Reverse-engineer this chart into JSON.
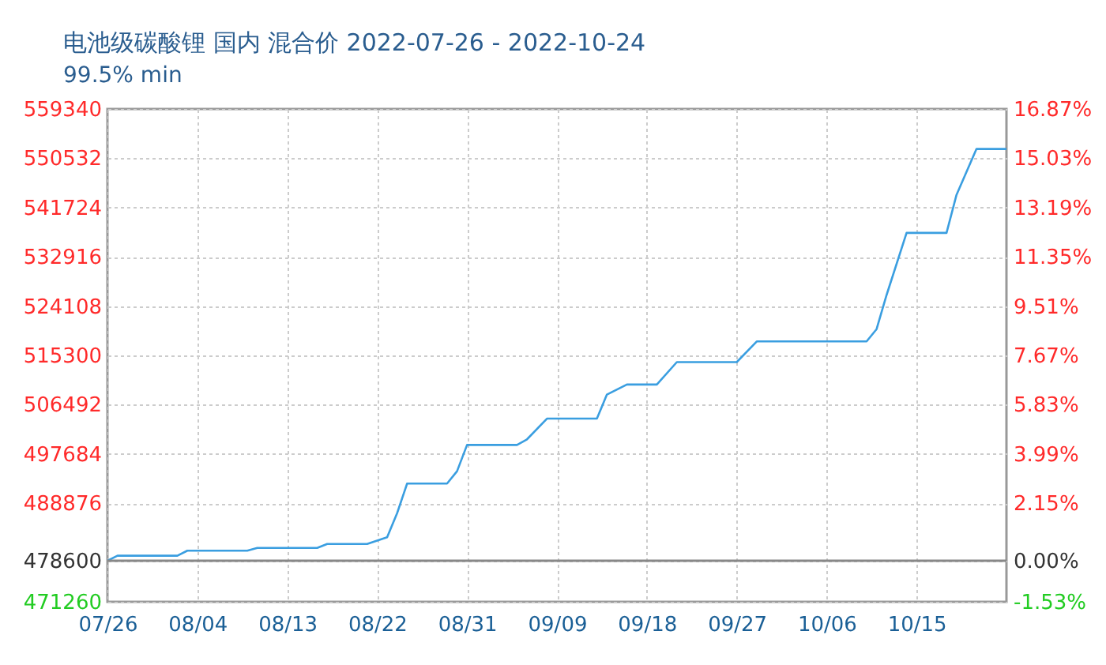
{
  "chart_data": {
    "type": "line",
    "title": "电池级碳酸锂 国内 混合价 2022-07-26 - 2022-10-24",
    "subtitle": "99.5% min",
    "x": [
      "2022-07-26",
      "2022-07-27",
      "2022-08-02",
      "2022-08-03",
      "2022-08-09",
      "2022-08-10",
      "2022-08-16",
      "2022-08-17",
      "2022-08-21",
      "2022-08-23",
      "2022-08-24",
      "2022-08-25",
      "2022-08-29",
      "2022-08-30",
      "2022-08-31",
      "2022-09-05",
      "2022-09-06",
      "2022-09-08",
      "2022-09-13",
      "2022-09-14",
      "2022-09-16",
      "2022-09-19",
      "2022-09-21",
      "2022-09-27",
      "2022-09-29",
      "2022-10-10",
      "2022-10-11",
      "2022-10-12",
      "2022-10-14",
      "2022-10-18",
      "2022-10-19",
      "2022-10-21",
      "2022-10-24"
    ],
    "series": [
      {
        "color": "#3a9ee0",
        "values": [
          478600,
          479500,
          479500,
          480400,
          480400,
          480900,
          480900,
          481600,
          481600,
          482800,
          487100,
          492400,
          492400,
          494600,
          499300,
          499300,
          500300,
          504000,
          504000,
          508300,
          510100,
          510100,
          514100,
          514100,
          517800,
          517800,
          520000,
          526100,
          537200,
          537200,
          544000,
          552200,
          552200
        ]
      }
    ],
    "xlim": [
      "2022-07-26",
      "2022-10-24"
    ],
    "xticks": [
      {
        "value": "2022-07-26",
        "label": "07/26"
      },
      {
        "value": "2022-08-04",
        "label": "08/04"
      },
      {
        "value": "2022-08-13",
        "label": "08/13"
      },
      {
        "value": "2022-08-22",
        "label": "08/22"
      },
      {
        "value": "2022-08-31",
        "label": "08/31"
      },
      {
        "value": "2022-09-09",
        "label": "09/09"
      },
      {
        "value": "2022-09-18",
        "label": "09/18"
      },
      {
        "value": "2022-09-27",
        "label": "09/27"
      },
      {
        "value": "2022-10-06",
        "label": "10/06"
      },
      {
        "value": "2022-10-15",
        "label": "10/15"
      }
    ],
    "ylim": [
      471260,
      559340
    ],
    "yticks": [
      471260,
      478600,
      488876,
      497684,
      506492,
      515300,
      524108,
      532916,
      541724,
      550532,
      559340
    ],
    "y2lim": [
      -1.53,
      16.87
    ],
    "y2ticks": [
      {
        "value": -1.53,
        "label": "-1.53%"
      },
      {
        "value": 0,
        "label": "0.00%"
      },
      {
        "value": 2.15,
        "label": "2.15%"
      },
      {
        "value": 3.99,
        "label": "3.99%"
      },
      {
        "value": 5.83,
        "label": "5.83%"
      },
      {
        "value": 7.67,
        "label": "7.67%"
      },
      {
        "value": 9.51,
        "label": "9.51%"
      },
      {
        "value": 11.35,
        "label": "11.35%"
      },
      {
        "value": 13.19,
        "label": "13.19%"
      },
      {
        "value": 15.03,
        "label": "15.03%"
      },
      {
        "value": 16.87,
        "label": "16.87%"
      }
    ],
    "ref_lines": [
      {
        "axis": "y",
        "value": 478600,
        "color": "#888888"
      }
    ],
    "grid": true,
    "line_style": "solid",
    "marker": "none"
  }
}
